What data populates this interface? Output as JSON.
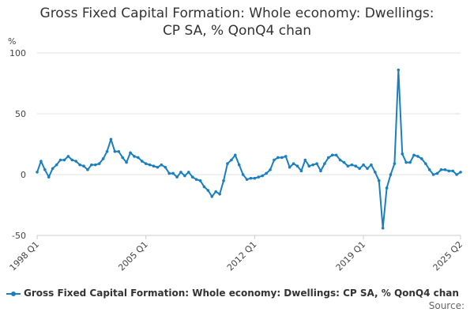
{
  "chart_data": {
    "type": "line",
    "title_line1": "Gross Fixed Capital Formation: Whole economy: Dwellings:",
    "title_line2": "CP SA, % QonQ4 chan",
    "ylabel": "%",
    "ylim": [
      -50,
      100
    ],
    "yticks": [
      "100",
      "50",
      "0",
      "-50"
    ],
    "ytick_values": [
      100,
      50,
      0,
      -50
    ],
    "xtick_labels": [
      "1998 Q1",
      "2005 Q1",
      "2012 Q1",
      "2019 Q1",
      "2025 Q2"
    ],
    "xtick_indices": [
      0,
      28,
      56,
      84,
      109
    ],
    "grid": true,
    "legend": "bottom",
    "series": [
      {
        "name": "Gross Fixed Capital Formation: Whole economy: Dwellings: CP SA, % QonQ4 chan",
        "color": "#1a7fbf",
        "values": [
          2,
          11,
          4,
          -2,
          5,
          8,
          12,
          12,
          15,
          12,
          11,
          8,
          7,
          4,
          8,
          8,
          9,
          13,
          19,
          29,
          19,
          19,
          14,
          10,
          18,
          15,
          14,
          11,
          9,
          8,
          7,
          6,
          8,
          6,
          1,
          1,
          -2,
          2,
          -1,
          2,
          -2,
          -4,
          -5,
          -10,
          -13,
          -18,
          -14,
          -16,
          -5,
          9,
          12,
          16,
          8,
          0,
          -4,
          -3,
          -3,
          -2,
          -1,
          1,
          4,
          12,
          14,
          14,
          15,
          6,
          9,
          7,
          3,
          12,
          7,
          8,
          9,
          3,
          9,
          14,
          16,
          16,
          12,
          10,
          7,
          8,
          7,
          5,
          8,
          5,
          8,
          2,
          -5,
          -44,
          -11,
          0,
          9,
          86,
          17,
          10,
          10,
          16,
          15,
          13,
          9,
          4,
          0,
          1,
          4,
          4,
          3,
          3,
          0,
          2
        ]
      }
    ]
  },
  "legend_label": "Gross Fixed Capital Formation: Whole economy: Dwellings: CP SA, % QonQ4 chan",
  "source_label": "Source:"
}
